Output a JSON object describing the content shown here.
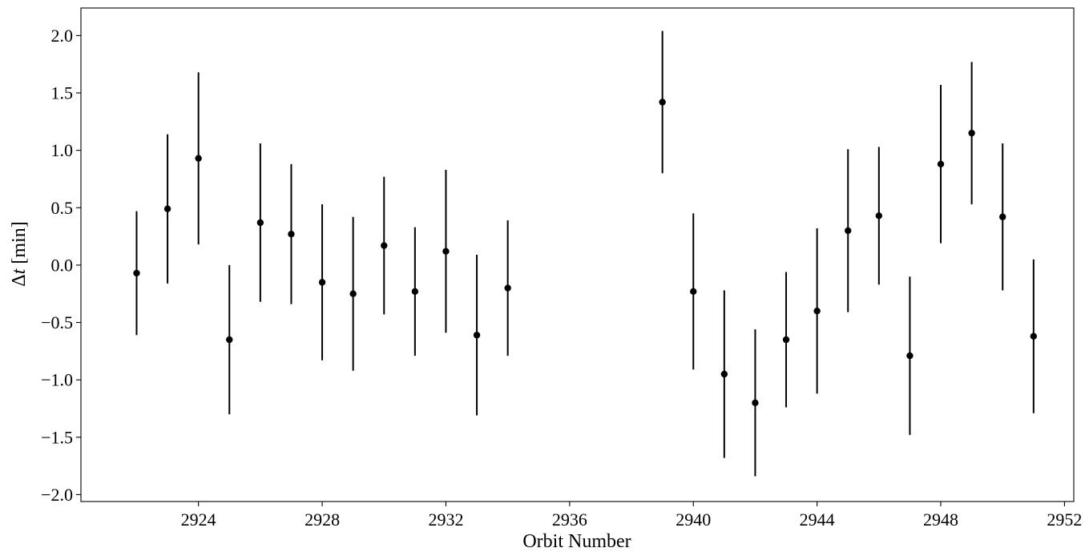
{
  "chart_data": {
    "type": "scatter",
    "xlabel": "Orbit Number",
    "ylabel_prefix": "Δ",
    "ylabel_var": "t",
    "ylabel_suffix": " [min]",
    "xlim": [
      2920.2,
      2952.3
    ],
    "ylim": [
      -2.06,
      2.24
    ],
    "xticks": [
      2924,
      2928,
      2932,
      2936,
      2940,
      2944,
      2948,
      2952
    ],
    "yticks": [
      -2.0,
      -1.5,
      -1.0,
      -0.5,
      0.0,
      0.5,
      1.0,
      1.5,
      2.0
    ],
    "ytick_labels": [
      "−2.0",
      "−1.5",
      "−1.0",
      "−0.5",
      "0.0",
      "0.5",
      "1.0",
      "1.5",
      "2.0"
    ],
    "grid": false,
    "series": [
      {
        "color": "#000000",
        "points": [
          {
            "x": 2922,
            "y": -0.07,
            "yerr": 0.54
          },
          {
            "x": 2923,
            "y": 0.49,
            "yerr": 0.65
          },
          {
            "x": 2924,
            "y": 0.93,
            "yerr": 0.75
          },
          {
            "x": 2925,
            "y": -0.65,
            "yerr": 0.65
          },
          {
            "x": 2926,
            "y": 0.37,
            "yerr": 0.69
          },
          {
            "x": 2927,
            "y": 0.27,
            "yerr": 0.61
          },
          {
            "x": 2928,
            "y": -0.15,
            "yerr": 0.68
          },
          {
            "x": 2929,
            "y": -0.25,
            "yerr": 0.67
          },
          {
            "x": 2930,
            "y": 0.17,
            "yerr": 0.6
          },
          {
            "x": 2931,
            "y": -0.23,
            "yerr": 0.56
          },
          {
            "x": 2932,
            "y": 0.12,
            "yerr": 0.71
          },
          {
            "x": 2933,
            "y": -0.61,
            "yerr": 0.7
          },
          {
            "x": 2934,
            "y": -0.2,
            "yerr": 0.59
          },
          {
            "x": 2939,
            "y": 1.42,
            "yerr": 0.62
          },
          {
            "x": 2940,
            "y": -0.23,
            "yerr": 0.68
          },
          {
            "x": 2941,
            "y": -0.95,
            "yerr": 0.73
          },
          {
            "x": 2942,
            "y": -1.2,
            "yerr": 0.64
          },
          {
            "x": 2943,
            "y": -0.65,
            "yerr": 0.59
          },
          {
            "x": 2944,
            "y": -0.4,
            "yerr": 0.72
          },
          {
            "x": 2945,
            "y": 0.3,
            "yerr": 0.71
          },
          {
            "x": 2946,
            "y": 0.43,
            "yerr": 0.6
          },
          {
            "x": 2947,
            "y": -0.79,
            "yerr": 0.69
          },
          {
            "x": 2948,
            "y": 0.88,
            "yerr": 0.69
          },
          {
            "x": 2949,
            "y": 1.15,
            "yerr": 0.62
          },
          {
            "x": 2950,
            "y": 0.42,
            "yerr": 0.64
          },
          {
            "x": 2951,
            "y": -0.62,
            "yerr": 0.67
          }
        ]
      }
    ]
  }
}
